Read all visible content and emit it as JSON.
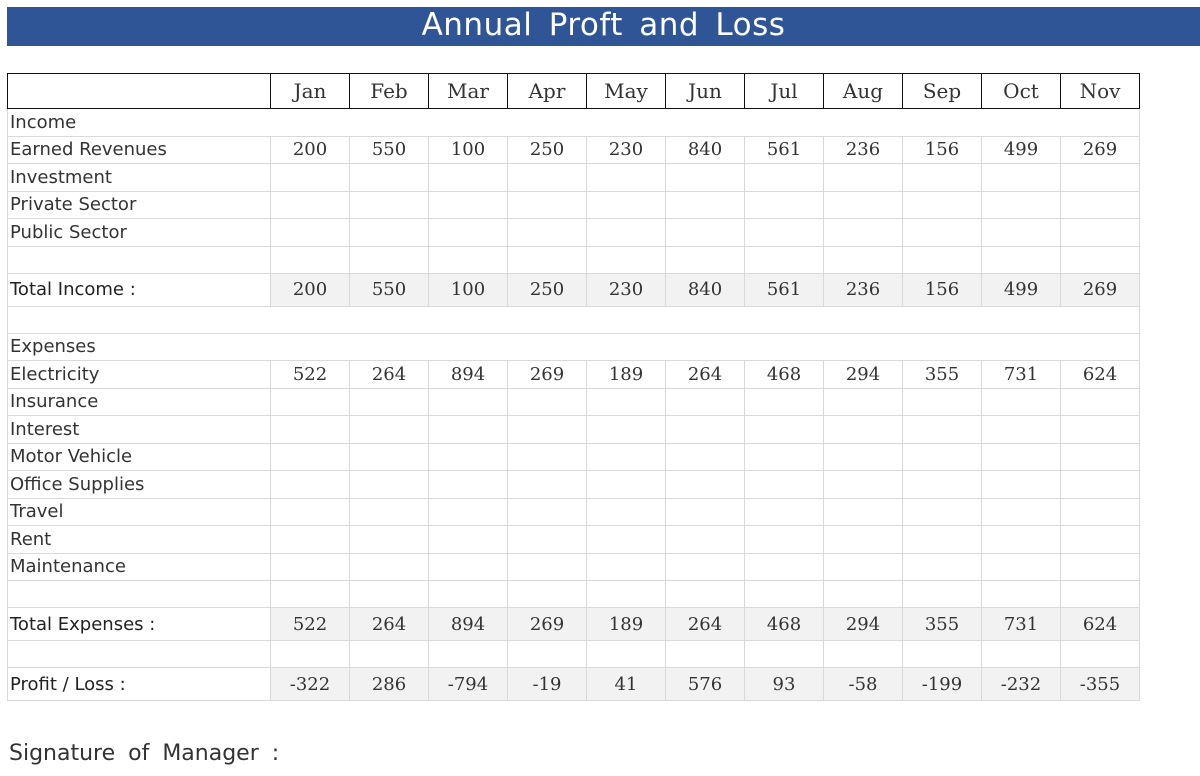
{
  "title": "Annual Proft and Loss",
  "months": [
    "Jan",
    "Feb",
    "Mar",
    "Apr",
    "May",
    "Jun",
    "Jul",
    "Aug",
    "Sep",
    "Oct",
    "Nov"
  ],
  "income": {
    "heading": "Income",
    "rows": [
      {
        "label": "Earned Revenues",
        "values": [
          "200",
          "550",
          "100",
          "250",
          "230",
          "840",
          "561",
          "236",
          "156",
          "499",
          "269"
        ]
      },
      {
        "label": "Investment",
        "values": [
          "",
          "",
          "",
          "",
          "",
          "",
          "",
          "",
          "",
          "",
          ""
        ]
      },
      {
        "label": "Private Sector",
        "values": [
          "",
          "",
          "",
          "",
          "",
          "",
          "",
          "",
          "",
          "",
          ""
        ]
      },
      {
        "label": "Public Sector",
        "values": [
          "",
          "",
          "",
          "",
          "",
          "",
          "",
          "",
          "",
          "",
          ""
        ]
      }
    ],
    "total": {
      "label": "Total Income :",
      "values": [
        "200",
        "550",
        "100",
        "250",
        "230",
        "840",
        "561",
        "236",
        "156",
        "499",
        "269"
      ]
    }
  },
  "expenses": {
    "heading": "Expenses",
    "rows": [
      {
        "label": "Electricity",
        "values": [
          "522",
          "264",
          "894",
          "269",
          "189",
          "264",
          "468",
          "294",
          "355",
          "731",
          "624"
        ]
      },
      {
        "label": "Insurance",
        "values": [
          "",
          "",
          "",
          "",
          "",
          "",
          "",
          "",
          "",
          "",
          ""
        ]
      },
      {
        "label": "Interest",
        "values": [
          "",
          "",
          "",
          "",
          "",
          "",
          "",
          "",
          "",
          "",
          ""
        ]
      },
      {
        "label": "Motor Vehicle",
        "values": [
          "",
          "",
          "",
          "",
          "",
          "",
          "",
          "",
          "",
          "",
          ""
        ]
      },
      {
        "label": "Office Supplies",
        "values": [
          "",
          "",
          "",
          "",
          "",
          "",
          "",
          "",
          "",
          "",
          ""
        ]
      },
      {
        "label": "Travel",
        "values": [
          "",
          "",
          "",
          "",
          "",
          "",
          "",
          "",
          "",
          "",
          ""
        ]
      },
      {
        "label": "Rent",
        "values": [
          "",
          "",
          "",
          "",
          "",
          "",
          "",
          "",
          "",
          "",
          ""
        ]
      },
      {
        "label": "Maintenance",
        "values": [
          "",
          "",
          "",
          "",
          "",
          "",
          "",
          "",
          "",
          "",
          ""
        ]
      }
    ],
    "total": {
      "label": "Total Expenses :",
      "values": [
        "522",
        "264",
        "894",
        "269",
        "189",
        "264",
        "468",
        "294",
        "355",
        "731",
        "624"
      ]
    }
  },
  "profit_loss": {
    "label": "Profit / Loss :",
    "values": [
      "-322",
      "286",
      "-794",
      "-19",
      "41",
      "576",
      "93",
      "-58",
      "-199",
      "-232",
      "-355"
    ]
  },
  "signature_label": "Signature of Manager :",
  "colors": {
    "banner": "#2f5597",
    "month_text": "#2f5597",
    "total_fill": "#f2f2f2",
    "grid": "#d9d9d9"
  }
}
